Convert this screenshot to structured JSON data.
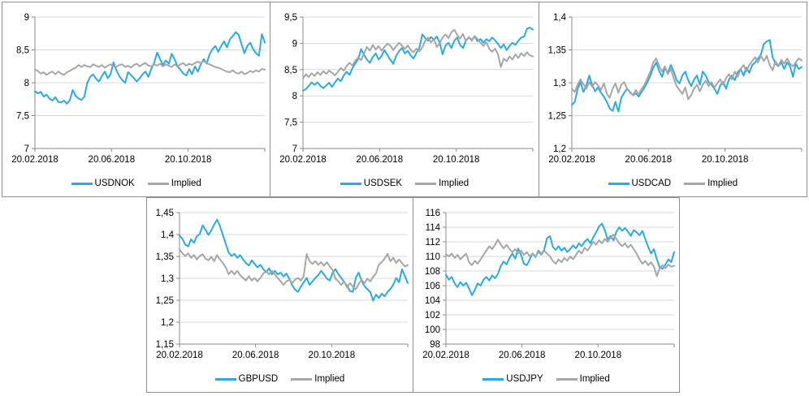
{
  "colors": {
    "pair": "#29ABE2",
    "implied": "#A6A6A6",
    "grid": "#D9D9D9",
    "axis": "#8A8A8A",
    "panel_border": "#8F8F8F",
    "text": "#000000"
  },
  "chart_data": [
    {
      "type": "line",
      "title": "",
      "x_tick_labels": [
        "20.02.2018",
        "20.06.2018",
        "20.10.2018"
      ],
      "y_tick_labels": [
        "9",
        "8,5",
        "8",
        "7,5",
        "7"
      ],
      "ylim": [
        7,
        9
      ],
      "grid": "horizontal",
      "legend_position": "bottom",
      "series": [
        {
          "name": "USDNOK",
          "color_role": "pair",
          "values": [
            7.87,
            7.84,
            7.86,
            7.79,
            7.82,
            7.76,
            7.73,
            7.78,
            7.71,
            7.7,
            7.73,
            7.68,
            7.74,
            7.89,
            7.8,
            7.76,
            7.74,
            7.79,
            8.0,
            8.09,
            8.13,
            8.06,
            8.02,
            8.1,
            8.17,
            8.07,
            8.13,
            8.31,
            8.19,
            8.1,
            8.04,
            8.0,
            8.16,
            8.12,
            8.07,
            8.02,
            8.07,
            8.13,
            8.17,
            8.09,
            8.21,
            8.31,
            8.46,
            8.36,
            8.27,
            8.34,
            8.29,
            8.44,
            8.36,
            8.25,
            8.2,
            8.14,
            8.11,
            8.21,
            8.13,
            8.25,
            8.17,
            8.28,
            8.36,
            8.29,
            8.43,
            8.51,
            8.56,
            8.47,
            8.56,
            8.63,
            8.54,
            8.66,
            8.71,
            8.77,
            8.73,
            8.59,
            8.45,
            8.56,
            8.61,
            8.51,
            8.45,
            8.41,
            8.74,
            8.61
          ]
        },
        {
          "name": "Implied",
          "color_role": "implied",
          "values": [
            8.2,
            8.18,
            8.14,
            8.16,
            8.12,
            8.15,
            8.17,
            8.13,
            8.17,
            8.14,
            8.12,
            8.16,
            8.18,
            8.21,
            8.23,
            8.27,
            8.24,
            8.27,
            8.25,
            8.24,
            8.28,
            8.26,
            8.24,
            8.27,
            8.23,
            8.26,
            8.28,
            8.25,
            8.24,
            8.27,
            8.28,
            8.24,
            8.26,
            8.23,
            8.27,
            8.29,
            8.25,
            8.28,
            8.3,
            8.26,
            8.25,
            8.28,
            8.26,
            8.29,
            8.25,
            8.28,
            8.26,
            8.24,
            8.28,
            8.25,
            8.28,
            8.3,
            8.26,
            8.29,
            8.27,
            8.3,
            8.32,
            8.3,
            8.33,
            8.3,
            8.28,
            8.26,
            8.24,
            8.23,
            8.21,
            8.19,
            8.17,
            8.16,
            8.19,
            8.15,
            8.14,
            8.17,
            8.13,
            8.15,
            8.18,
            8.16,
            8.19,
            8.17,
            8.21,
            8.2
          ]
        }
      ]
    },
    {
      "type": "line",
      "title": "",
      "x_tick_labels": [
        "20.02.2018",
        "20.06.2018",
        "20.10.2018"
      ],
      "y_tick_labels": [
        "9,5",
        "9",
        "8,5",
        "8",
        "7,5",
        "7"
      ],
      "ylim": [
        7,
        9.5
      ],
      "grid": "horizontal",
      "legend_position": "bottom",
      "series": [
        {
          "name": "USDSEK",
          "color_role": "pair",
          "values": [
            8.1,
            8.13,
            8.19,
            8.26,
            8.21,
            8.26,
            8.19,
            8.15,
            8.2,
            8.25,
            8.17,
            8.26,
            8.33,
            8.28,
            8.39,
            8.46,
            8.4,
            8.53,
            8.62,
            8.7,
            8.89,
            8.78,
            8.69,
            8.63,
            8.74,
            8.81,
            8.69,
            8.76,
            8.87,
            8.78,
            8.69,
            8.61,
            8.76,
            8.85,
            8.91,
            8.81,
            8.86,
            8.77,
            8.71,
            8.82,
            8.91,
            9.17,
            9.1,
            9.05,
            9.12,
            9.07,
            9.13,
            9.01,
            8.79,
            8.96,
            9.01,
            8.91,
            9.05,
            9.11,
            8.97,
            8.91,
            9.05,
            9.11,
            9.07,
            9.13,
            9.04,
            9.08,
            9.01,
            9.08,
            9.04,
            9.11,
            9.06,
            8.99,
            8.91,
            8.98,
            8.87,
            8.95,
            9.01,
            8.97,
            9.05,
            9.11,
            9.13,
            9.28,
            9.3,
            9.26
          ]
        },
        {
          "name": "Implied",
          "color_role": "implied",
          "values": [
            8.33,
            8.41,
            8.36,
            8.43,
            8.38,
            8.45,
            8.4,
            8.47,
            8.42,
            8.48,
            8.44,
            8.39,
            8.46,
            8.53,
            8.48,
            8.57,
            8.63,
            8.58,
            8.67,
            8.73,
            8.68,
            8.81,
            8.93,
            8.86,
            8.97,
            8.88,
            8.95,
            8.86,
            8.93,
            8.99,
            8.96,
            8.87,
            8.94,
            9.01,
            8.96,
            8.89,
            8.96,
            8.88,
            8.83,
            8.9,
            8.85,
            8.92,
            9.05,
            9.11,
            9.02,
            9.09,
            8.93,
            9.0,
            9.11,
            9.17,
            9.1,
            9.21,
            9.26,
            9.16,
            9.09,
            9.18,
            9.04,
            9.12,
            9.05,
            9.14,
            9.08,
            9.01,
            8.95,
            9.02,
            8.9,
            8.84,
            8.9,
            8.8,
            8.55,
            8.71,
            8.66,
            8.75,
            8.69,
            8.79,
            8.72,
            8.81,
            8.76,
            8.83,
            8.77,
            8.75
          ]
        }
      ]
    },
    {
      "type": "line",
      "title": "",
      "x_tick_labels": [
        "20.02.2018",
        "20.06.2018",
        "20.10.2018"
      ],
      "y_tick_labels": [
        "1,4",
        "1,35",
        "1,3",
        "1,25",
        "1,2"
      ],
      "ylim": [
        1.2,
        1.4
      ],
      "grid": "horizontal",
      "legend_position": "bottom",
      "series": [
        {
          "name": "USDCAD",
          "color_role": "pair",
          "values": [
            1.266,
            1.271,
            1.291,
            1.301,
            1.286,
            1.296,
            1.311,
            1.296,
            1.287,
            1.293,
            1.285,
            1.279,
            1.271,
            1.261,
            1.257,
            1.271,
            1.256,
            1.277,
            1.285,
            1.291,
            1.286,
            1.281,
            1.284,
            1.279,
            1.286,
            1.293,
            1.301,
            1.311,
            1.323,
            1.331,
            1.318,
            1.309,
            1.323,
            1.315,
            1.327,
            1.317,
            1.304,
            1.299,
            1.311,
            1.317,
            1.304,
            1.295,
            1.305,
            1.311,
            1.297,
            1.317,
            1.311,
            1.301,
            1.297,
            1.291,
            1.283,
            1.296,
            1.301,
            1.291,
            1.305,
            1.311,
            1.304,
            1.316,
            1.321,
            1.311,
            1.323,
            1.315,
            1.327,
            1.331,
            1.337,
            1.343,
            1.359,
            1.363,
            1.365,
            1.339,
            1.329,
            1.325,
            1.331,
            1.321,
            1.331,
            1.325,
            1.309,
            1.329,
            1.321,
            1.324
          ]
        },
        {
          "name": "Implied",
          "color_role": "implied",
          "values": [
            1.291,
            1.286,
            1.297,
            1.305,
            1.298,
            1.291,
            1.301,
            1.294,
            1.301,
            1.296,
            1.289,
            1.299,
            1.284,
            1.277,
            1.291,
            1.299,
            1.285,
            1.297,
            1.301,
            1.291,
            1.285,
            1.281,
            1.289,
            1.283,
            1.291,
            1.297,
            1.307,
            1.317,
            1.331,
            1.337,
            1.326,
            1.317,
            1.325,
            1.313,
            1.321,
            1.307,
            1.295,
            1.289,
            1.283,
            1.293,
            1.275,
            1.281,
            1.291,
            1.297,
            1.287,
            1.297,
            1.303,
            1.295,
            1.301,
            1.293,
            1.299,
            1.305,
            1.297,
            1.307,
            1.313,
            1.305,
            1.317,
            1.309,
            1.321,
            1.327,
            1.317,
            1.327,
            1.333,
            1.339,
            1.331,
            1.341,
            1.333,
            1.341,
            1.327,
            1.319,
            1.333,
            1.325,
            1.335,
            1.329,
            1.337,
            1.329,
            1.325,
            1.331,
            1.337,
            1.334
          ]
        }
      ]
    },
    {
      "type": "line",
      "title": "",
      "x_tick_labels": [
        "20.02.2018",
        "20.06.2018",
        "20.10.2018"
      ],
      "y_tick_labels": [
        "1,45",
        "1,4",
        "1,35",
        "1,3",
        "1,25",
        "1,2",
        "1,15"
      ],
      "ylim": [
        1.15,
        1.45
      ],
      "grid": "horizontal",
      "legend_position": "bottom",
      "series": [
        {
          "name": "GBPUSD",
          "color_role": "pair",
          "values": [
            1.398,
            1.39,
            1.377,
            1.373,
            1.389,
            1.381,
            1.396,
            1.401,
            1.421,
            1.411,
            1.399,
            1.409,
            1.423,
            1.434,
            1.419,
            1.399,
            1.379,
            1.359,
            1.351,
            1.356,
            1.347,
            1.353,
            1.343,
            1.335,
            1.329,
            1.341,
            1.333,
            1.325,
            1.331,
            1.321,
            1.314,
            1.323,
            1.309,
            1.317,
            1.309,
            1.313,
            1.304,
            1.311,
            1.299,
            1.284,
            1.274,
            1.269,
            1.281,
            1.291,
            1.301,
            1.285,
            1.293,
            1.301,
            1.307,
            1.317,
            1.309,
            1.299,
            1.295,
            1.313,
            1.321,
            1.309,
            1.301,
            1.291,
            1.283,
            1.271,
            1.269,
            1.301,
            1.313,
            1.295,
            1.283,
            1.275,
            1.269,
            1.249,
            1.263,
            1.255,
            1.265,
            1.259,
            1.269,
            1.276,
            1.286,
            1.301,
            1.291,
            1.321,
            1.305,
            1.289
          ]
        },
        {
          "name": "Implied",
          "color_role": "implied",
          "values": [
            1.366,
            1.357,
            1.351,
            1.357,
            1.347,
            1.353,
            1.343,
            1.351,
            1.355,
            1.345,
            1.341,
            1.349,
            1.339,
            1.353,
            1.343,
            1.335,
            1.325,
            1.309,
            1.317,
            1.309,
            1.317,
            1.307,
            1.301,
            1.295,
            1.305,
            1.295,
            1.301,
            1.293,
            1.301,
            1.311,
            1.317,
            1.309,
            1.317,
            1.309,
            1.301,
            1.293,
            1.285,
            1.293,
            1.297,
            1.289,
            1.297,
            1.301,
            1.295,
            1.305,
            1.355,
            1.339,
            1.333,
            1.339,
            1.331,
            1.337,
            1.329,
            1.337,
            1.327,
            1.319,
            1.299,
            1.293,
            1.285,
            1.293,
            1.279,
            1.289,
            1.281,
            1.275,
            1.287,
            1.297,
            1.289,
            1.299,
            1.293,
            1.303,
            1.311,
            1.331,
            1.337,
            1.345,
            1.356,
            1.339,
            1.347,
            1.335,
            1.343,
            1.335,
            1.327,
            1.33
          ]
        }
      ]
    },
    {
      "type": "line",
      "title": "",
      "x_tick_labels": [
        "20.02.2018",
        "20.06.2018",
        "20.10.2018"
      ],
      "y_tick_labels": [
        "116",
        "114",
        "112",
        "110",
        "108",
        "106",
        "104",
        "102",
        "100",
        "98"
      ],
      "ylim": [
        98,
        116
      ],
      "grid": "horizontal",
      "legend_position": "bottom",
      "series": [
        {
          "name": "USDJPY",
          "color_role": "pair",
          "values": [
            107.5,
            106.8,
            107.2,
            106.3,
            105.8,
            106.5,
            106.0,
            106.4,
            105.6,
            104.7,
            105.4,
            106.3,
            106.0,
            106.8,
            107.2,
            106.7,
            107.4,
            107.0,
            107.6,
            108.7,
            109.3,
            108.9,
            109.8,
            110.4,
            109.7,
            111.1,
            110.2,
            109.0,
            108.8,
            109.6,
            110.4,
            109.9,
            110.8,
            110.3,
            110.9,
            112.5,
            112.8,
            111.3,
            110.9,
            111.4,
            110.8,
            111.2,
            110.6,
            111.0,
            111.5,
            111.1,
            111.8,
            111.4,
            112.0,
            112.4,
            111.8,
            112.6,
            113.3,
            114.1,
            114.5,
            113.6,
            112.3,
            112.8,
            112.2,
            113.4,
            114.0,
            113.5,
            113.9,
            113.4,
            112.8,
            113.6,
            113.3,
            112.9,
            113.5,
            112.4,
            111.3,
            110.4,
            111.0,
            109.6,
            108.5,
            108.3,
            108.9,
            109.6,
            109.2,
            110.6
          ]
        },
        {
          "name": "Implied",
          "color_role": "implied",
          "values": [
            110.3,
            110.0,
            110.4,
            109.8,
            110.2,
            109.6,
            110.0,
            110.4,
            109.2,
            108.8,
            109.4,
            109.0,
            109.6,
            110.2,
            110.8,
            111.4,
            111.0,
            111.6,
            112.3,
            111.6,
            111.1,
            111.6,
            111.0,
            110.6,
            111.0,
            110.4,
            110.8,
            110.2,
            110.6,
            110.0,
            110.4,
            110.0,
            110.6,
            110.2,
            110.8,
            110.4,
            110.0,
            109.4,
            109.0,
            109.6,
            109.2,
            109.8,
            109.4,
            110.0,
            109.6,
            110.2,
            110.8,
            110.4,
            111.2,
            110.8,
            111.4,
            112.0,
            111.6,
            112.2,
            111.8,
            112.4,
            112.0,
            112.6,
            113.0,
            112.4,
            111.8,
            111.4,
            111.8,
            111.2,
            111.6,
            111.0,
            110.4,
            109.6,
            109.0,
            109.4,
            108.8,
            109.2,
            108.6,
            107.3,
            108.4,
            108.8,
            108.4,
            108.9,
            108.6,
            108.7
          ]
        }
      ]
    }
  ]
}
